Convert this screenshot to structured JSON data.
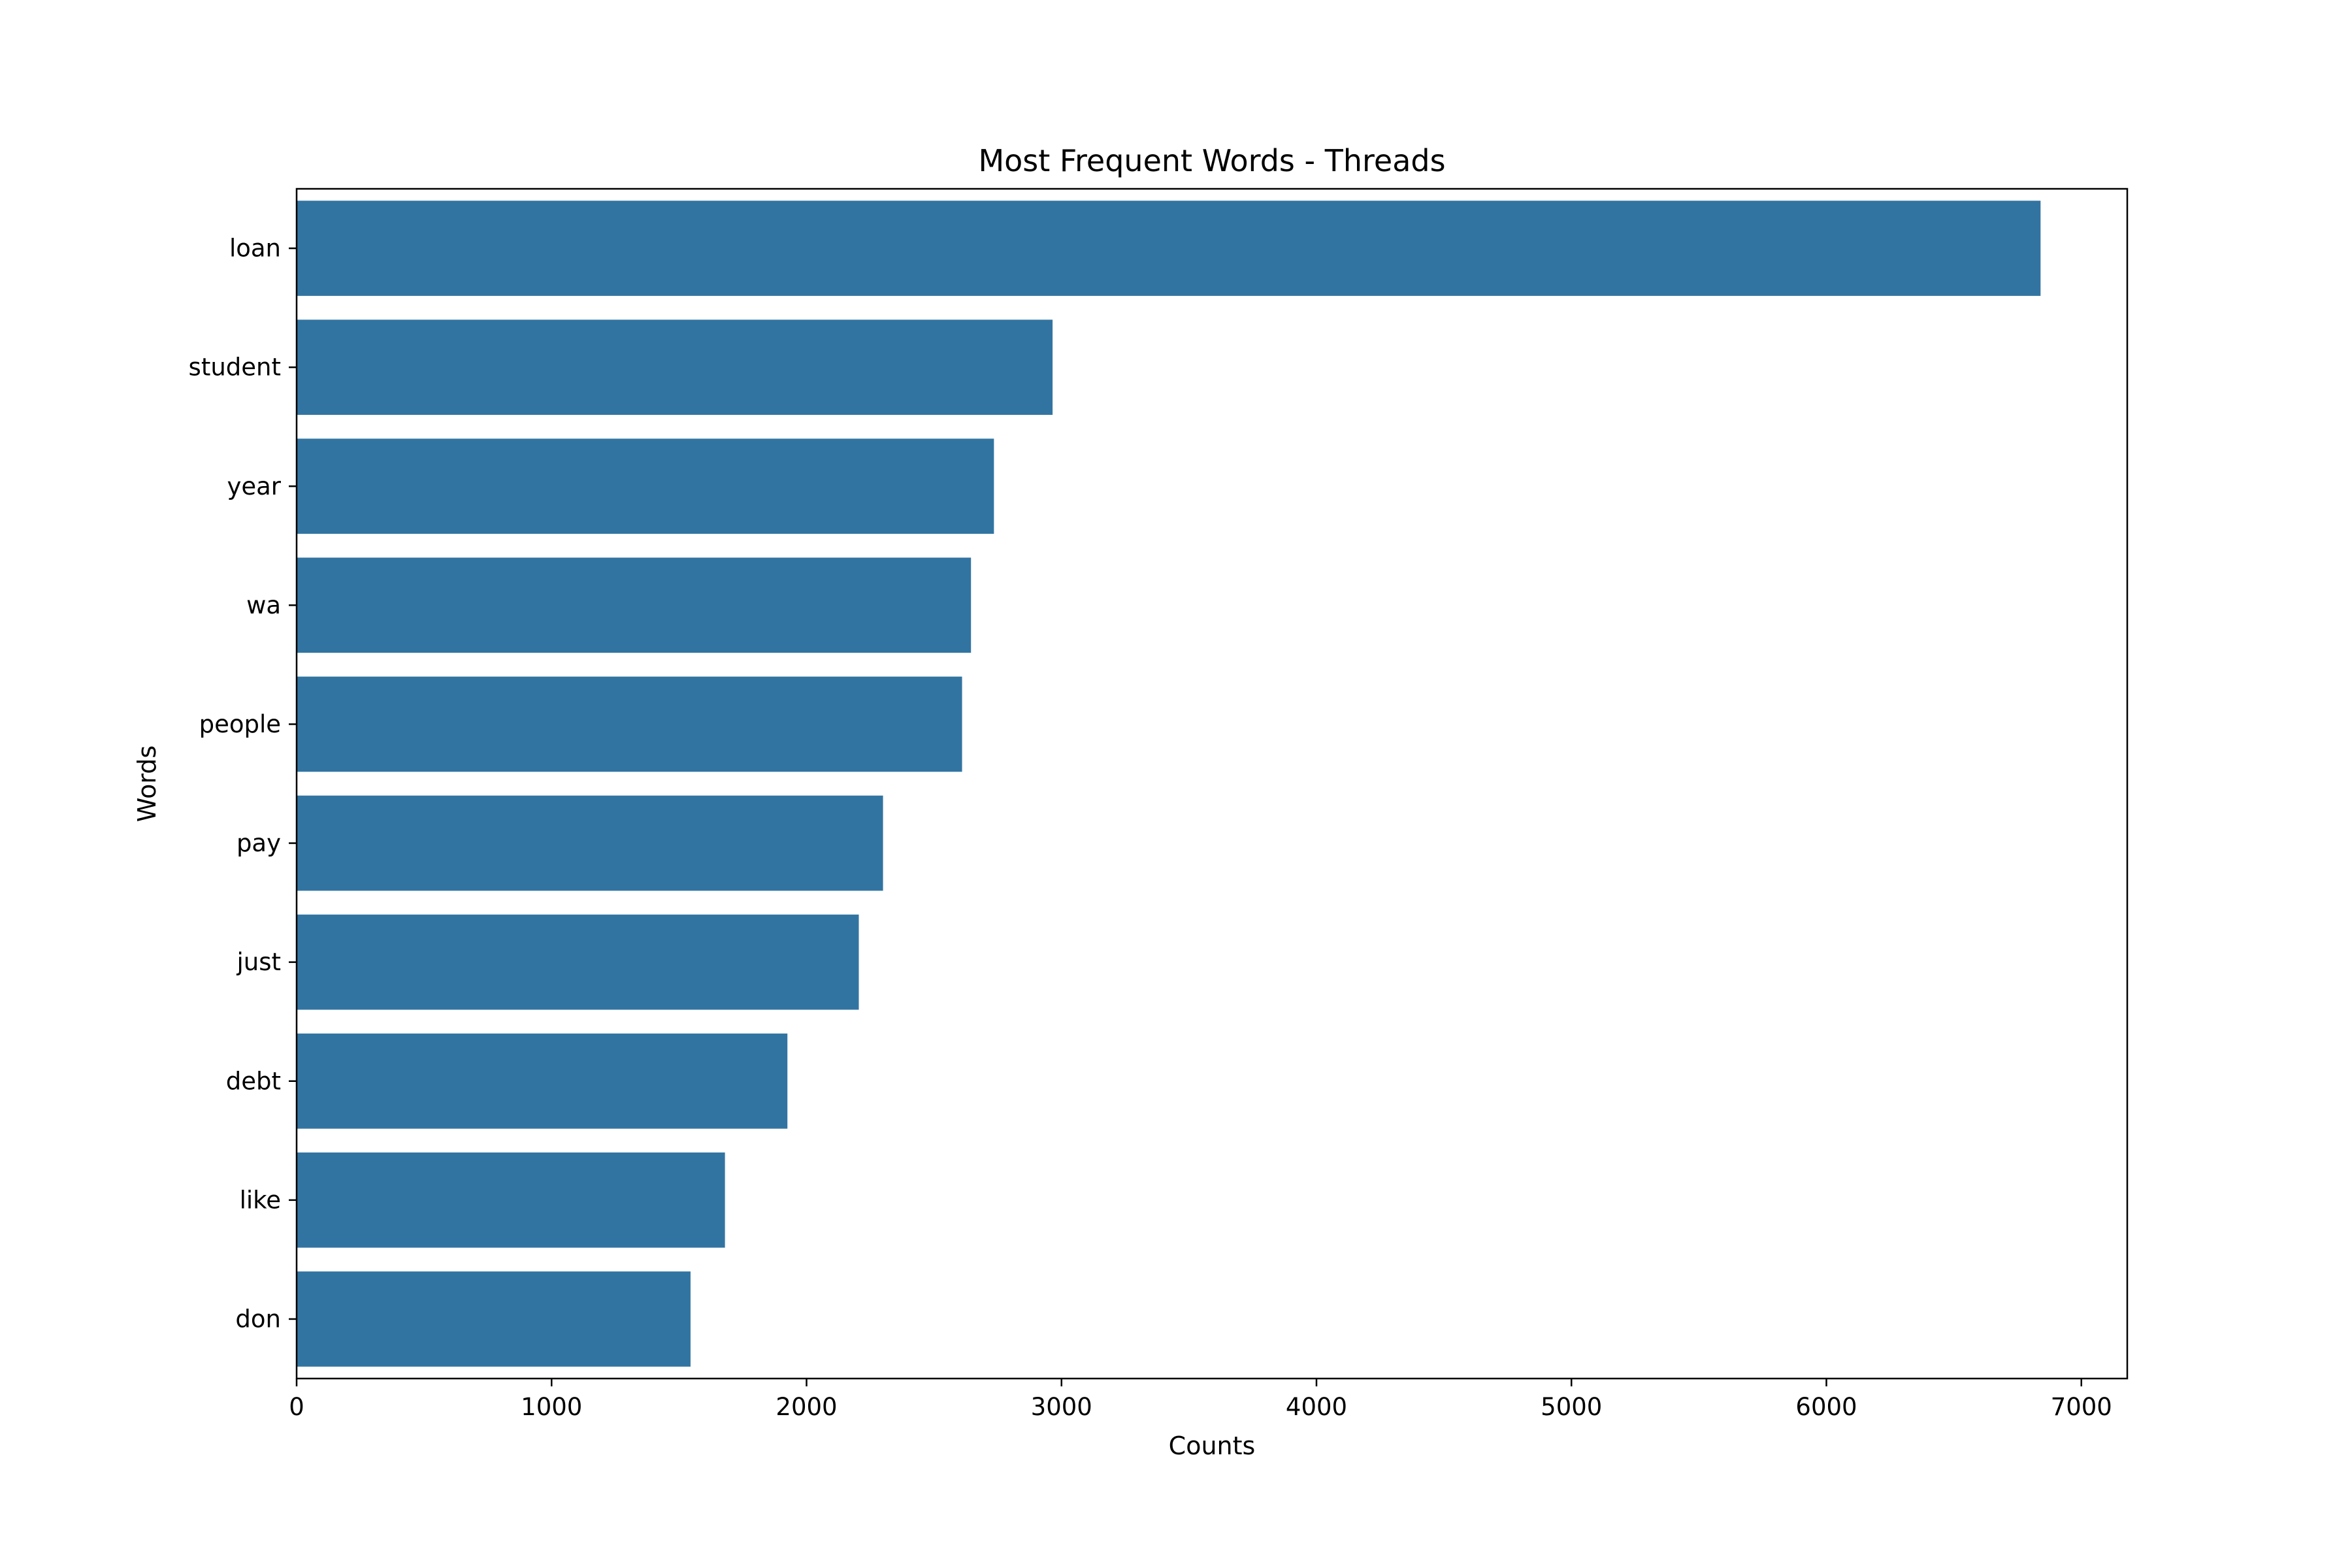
{
  "chart_data": {
    "type": "bar",
    "orientation": "horizontal",
    "title": "Most Frequent Words - Threads",
    "xlabel": "Counts",
    "ylabel": "Words",
    "categories": [
      "loan",
      "student",
      "year",
      "wa",
      "people",
      "pay",
      "just",
      "debt",
      "like",
      "don"
    ],
    "values": [
      6840,
      2965,
      2735,
      2645,
      2610,
      2300,
      2205,
      1925,
      1680,
      1545
    ],
    "xlim": [
      0,
      7180
    ],
    "xticks": [
      0,
      1000,
      2000,
      3000,
      4000,
      5000,
      6000,
      7000
    ],
    "xtick_labels": [
      "0",
      "1000",
      "2000",
      "3000",
      "4000",
      "5000",
      "6000",
      "7000"
    ],
    "grid": false,
    "legend": "none",
    "bar_color": "#3274a1"
  }
}
